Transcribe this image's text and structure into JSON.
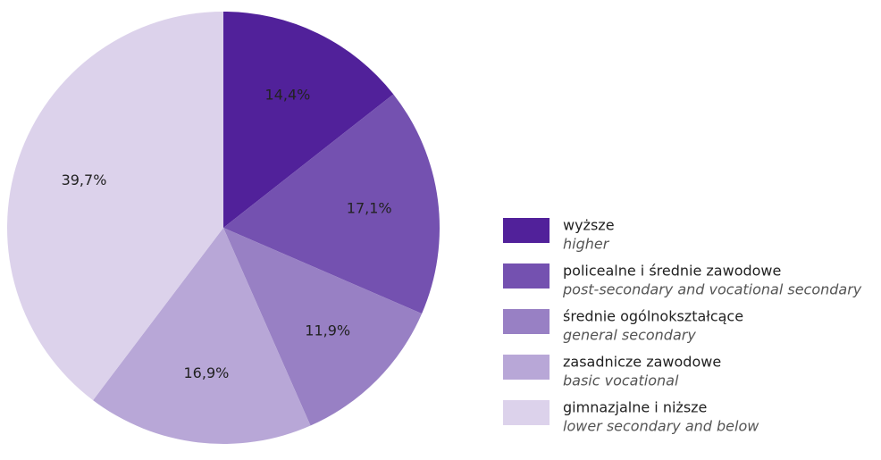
{
  "chart_data": {
    "type": "pie",
    "categories": [
      "wyższe",
      "policealne i średnie zawodowe",
      "średnie ogólnokształcące",
      "zasadnicze zawodowe",
      "gimnazjalne i niższe"
    ],
    "category_translations": [
      "higher",
      "post-secondary and vocational secondary",
      "general secondary",
      "basic vocational",
      "lower secondary and below"
    ],
    "values": [
      14.4,
      17.1,
      11.9,
      16.9,
      39.7
    ],
    "value_labels": [
      "14,4%",
      "17,1%",
      "11,9%",
      "16,9%",
      "39,7%"
    ],
    "colors": [
      "#51219a",
      "#7451b0",
      "#9880c4",
      "#b8a7d7",
      "#dcd2eb"
    ],
    "legend": "right"
  }
}
